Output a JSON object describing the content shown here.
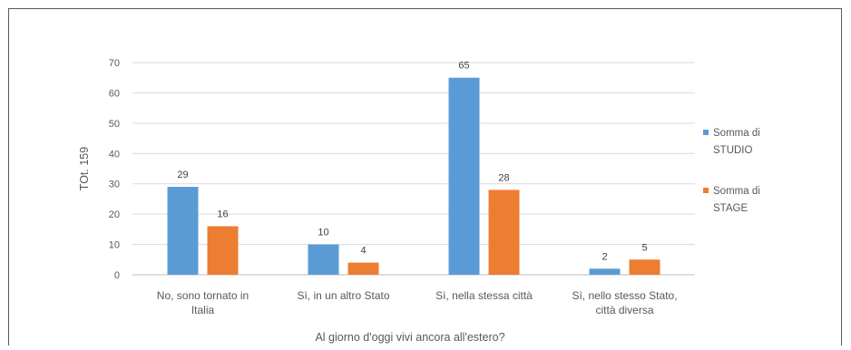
{
  "chart_data": {
    "type": "bar",
    "title": "",
    "xlabel": "Al giorno d'oggi vivi ancora all'estero?",
    "ylabel": "TOt. 159",
    "ylim": [
      0,
      70
    ],
    "yticks": [
      0,
      10,
      20,
      30,
      40,
      50,
      60,
      70
    ],
    "grid": true,
    "legend_position": "right",
    "categories": [
      [
        "No, sono tornato in",
        "Italia"
      ],
      [
        "Sì, in un altro Stato"
      ],
      [
        "Sì, nella stessa città"
      ],
      [
        "Sì, nello stesso Stato,",
        "città diversa"
      ]
    ],
    "series": [
      {
        "name": [
          "Somma di",
          "STUDIO"
        ],
        "color": "#5b9bd5",
        "values": [
          29,
          10,
          65,
          2
        ]
      },
      {
        "name": [
          "Somma di",
          "STAGE"
        ],
        "color": "#ed7d31",
        "values": [
          16,
          4,
          28,
          5
        ]
      }
    ]
  }
}
